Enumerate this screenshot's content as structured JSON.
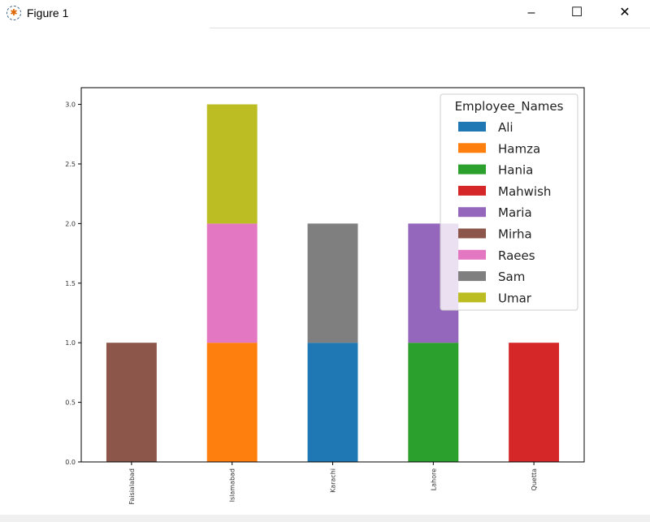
{
  "window": {
    "title": "Figure 1",
    "minimize": "–",
    "maximize": "☐",
    "close": "✕"
  },
  "chart_data": {
    "type": "bar",
    "stacked": true,
    "categories": [
      "Faisialabad",
      "Islamabad",
      "Karachi",
      "Lahore",
      "Quetta"
    ],
    "series": [
      {
        "name": "Ali",
        "color": "#1f77b4",
        "values": [
          0,
          0,
          1,
          0,
          0
        ]
      },
      {
        "name": "Hamza",
        "color": "#ff7f0e",
        "values": [
          0,
          1,
          0,
          0,
          0
        ]
      },
      {
        "name": "Hania",
        "color": "#2ca02c",
        "values": [
          0,
          0,
          0,
          1,
          0
        ]
      },
      {
        "name": "Mahwish",
        "color": "#d62728",
        "values": [
          0,
          0,
          0,
          0,
          1
        ]
      },
      {
        "name": "Maria",
        "color": "#9467bd",
        "values": [
          0,
          0,
          0,
          1,
          0
        ]
      },
      {
        "name": "Mirha",
        "color": "#8c564b",
        "values": [
          1,
          0,
          0,
          0,
          0
        ]
      },
      {
        "name": "Raees",
        "color": "#e377c2",
        "values": [
          0,
          1,
          0,
          0,
          0
        ]
      },
      {
        "name": "Sam",
        "color": "#7f7f7f",
        "values": [
          0,
          0,
          1,
          0,
          0
        ]
      },
      {
        "name": "Umar",
        "color": "#bcbd22",
        "values": [
          0,
          1,
          0,
          0,
          0
        ]
      }
    ],
    "legend_title": "Employee_Names",
    "legend_position": "top-right",
    "yticks": [
      "0.0",
      "0.5",
      "1.0",
      "1.5",
      "2.0",
      "2.5",
      "3.0"
    ],
    "ylim": [
      0,
      3.14
    ],
    "xlabel": "",
    "ylabel": "",
    "title": ""
  }
}
